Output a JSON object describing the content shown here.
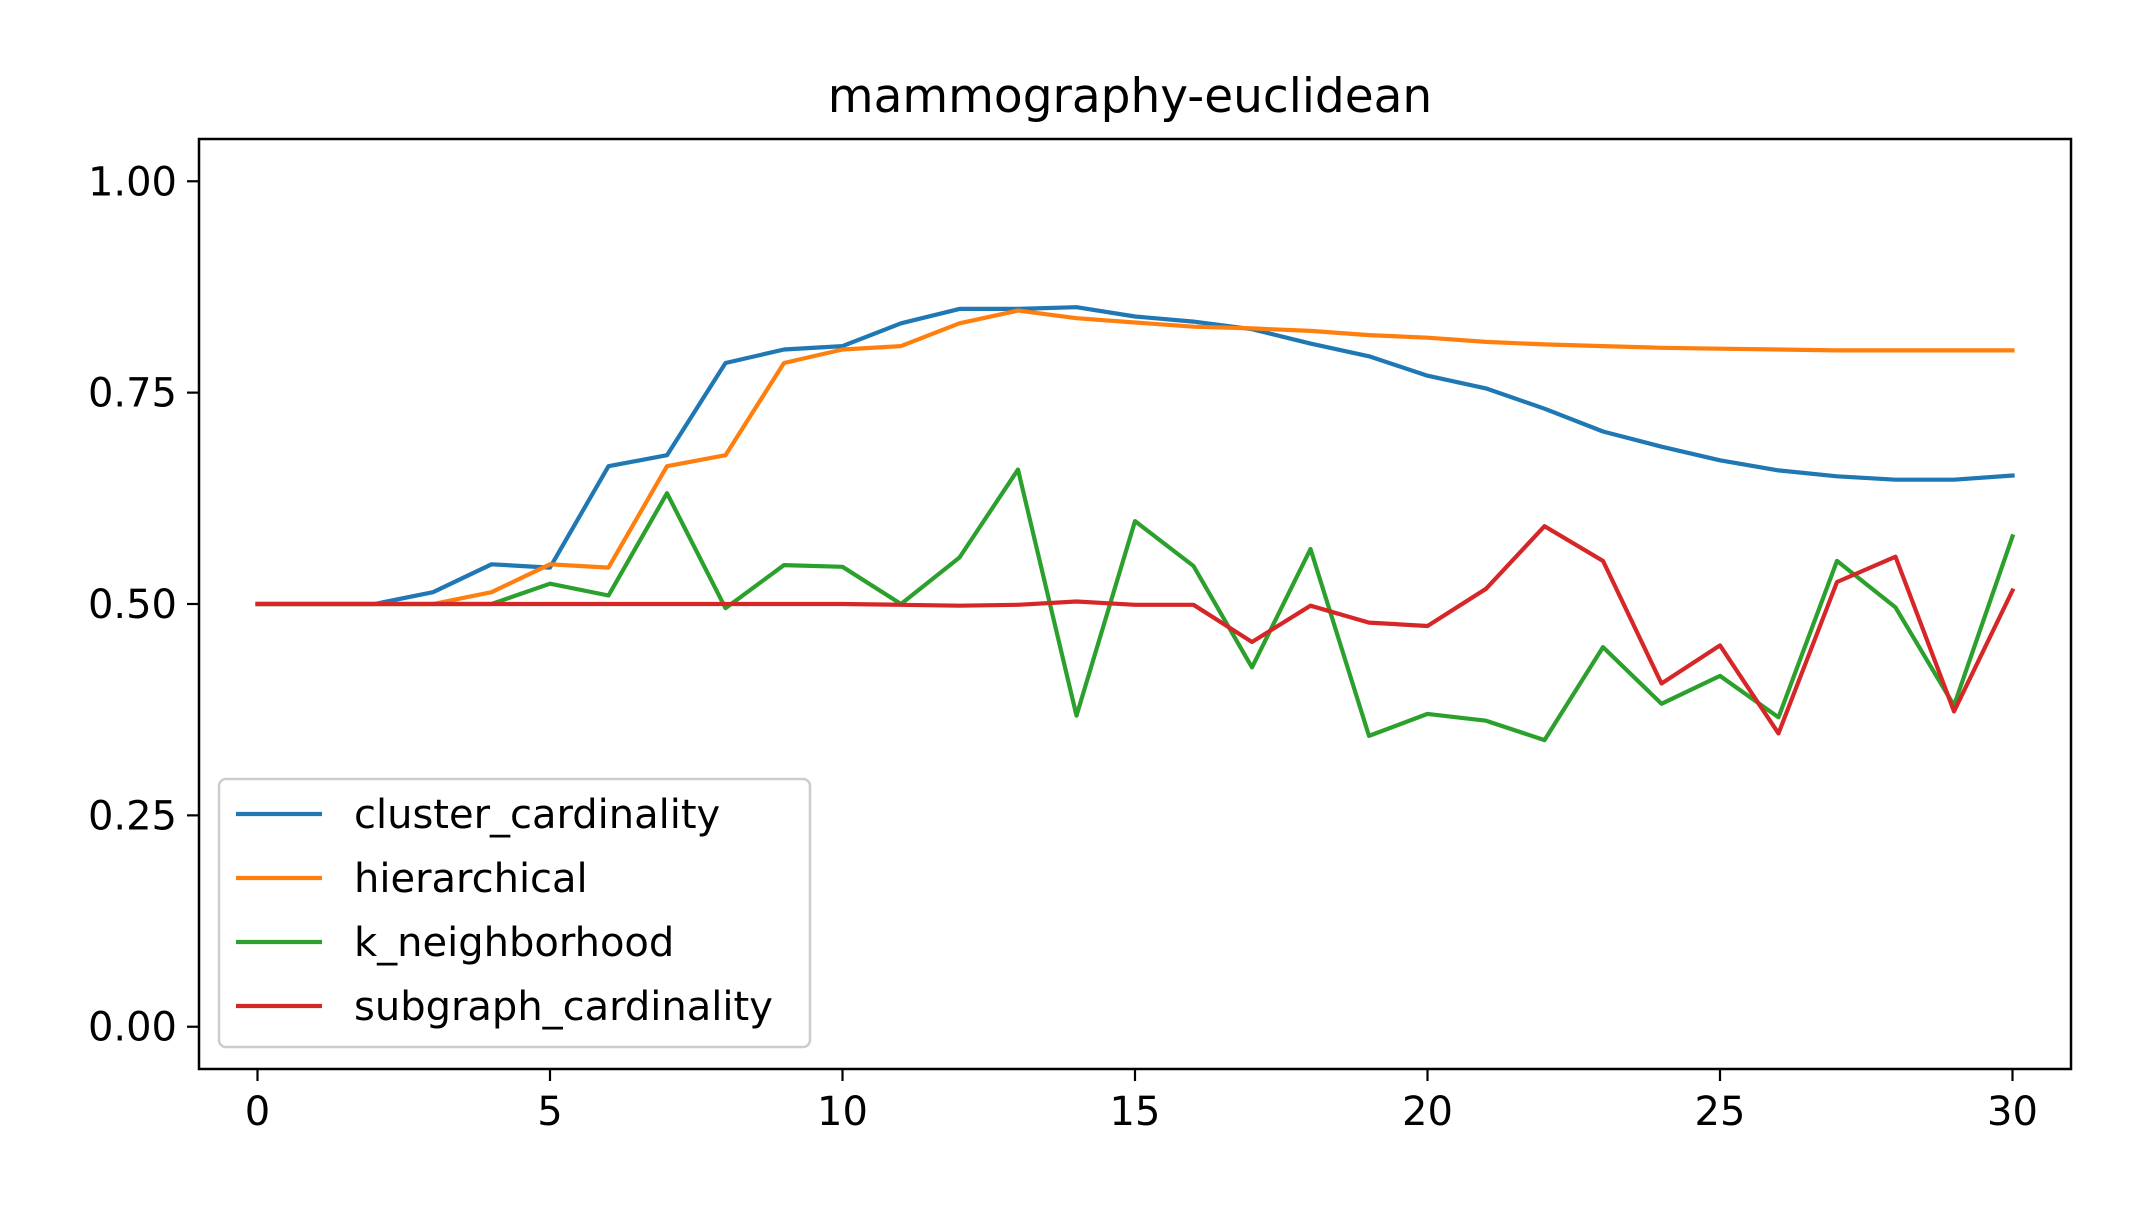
{
  "chart_data": {
    "type": "line",
    "title": "mammography-euclidean",
    "xlabel": "",
    "ylabel": "",
    "xlim": [
      -1,
      31
    ],
    "ylim": [
      -0.05,
      1.05
    ],
    "xticks": [
      0,
      5,
      10,
      15,
      20,
      25,
      30
    ],
    "xtick_labels": [
      "0",
      "5",
      "10",
      "15",
      "20",
      "25",
      "30"
    ],
    "yticks": [
      0.0,
      0.25,
      0.5,
      0.75,
      1.0
    ],
    "ytick_labels": [
      "0.00",
      "0.25",
      "0.50",
      "0.75",
      "1.00"
    ],
    "grid": false,
    "legend_position": "lower-left",
    "x": [
      0,
      1,
      2,
      3,
      4,
      5,
      6,
      7,
      8,
      9,
      10,
      11,
      12,
      13,
      14,
      15,
      16,
      17,
      18,
      19,
      20,
      21,
      22,
      23,
      24,
      25,
      26,
      27,
      28,
      29,
      30
    ],
    "series": [
      {
        "name": "cluster_cardinality",
        "color": "#1f77b4",
        "values": [
          0.5,
          0.5,
          0.5,
          0.514,
          0.547,
          0.543,
          0.663,
          0.676,
          0.785,
          0.801,
          0.805,
          0.832,
          0.849,
          0.849,
          0.851,
          0.84,
          0.834,
          0.825,
          0.808,
          0.793,
          0.77,
          0.755,
          0.731,
          0.704,
          0.686,
          0.67,
          0.658,
          0.651,
          0.647,
          0.647,
          0.652
        ]
      },
      {
        "name": "hierarchical",
        "color": "#ff7f0e",
        "values": [
          0.5,
          0.5,
          0.5,
          0.5,
          0.514,
          0.547,
          0.543,
          0.663,
          0.676,
          0.785,
          0.801,
          0.805,
          0.832,
          0.847,
          0.838,
          0.833,
          0.828,
          0.826,
          0.823,
          0.818,
          0.815,
          0.81,
          0.807,
          0.805,
          0.803,
          0.802,
          0.801,
          0.8,
          0.8,
          0.8,
          0.8
        ]
      },
      {
        "name": "k_neighborhood",
        "color": "#2ca02c",
        "values": [
          0.5,
          0.5,
          0.5,
          0.5,
          0.5,
          0.524,
          0.51,
          0.631,
          0.495,
          0.546,
          0.544,
          0.5,
          0.555,
          0.659,
          0.368,
          0.598,
          0.545,
          0.425,
          0.565,
          0.344,
          0.37,
          0.362,
          0.339,
          0.449,
          0.382,
          0.415,
          0.366,
          0.551,
          0.496,
          0.38,
          0.58
        ]
      },
      {
        "name": "subgraph_cardinality",
        "color": "#d62728",
        "values": [
          0.5,
          0.5,
          0.5,
          0.5,
          0.5,
          0.5,
          0.5,
          0.5,
          0.5,
          0.5,
          0.5,
          0.499,
          0.498,
          0.499,
          0.503,
          0.499,
          0.499,
          0.455,
          0.498,
          0.478,
          0.474,
          0.518,
          0.592,
          0.551,
          0.406,
          0.451,
          0.347,
          0.526,
          0.556,
          0.373,
          0.516
        ]
      }
    ]
  }
}
